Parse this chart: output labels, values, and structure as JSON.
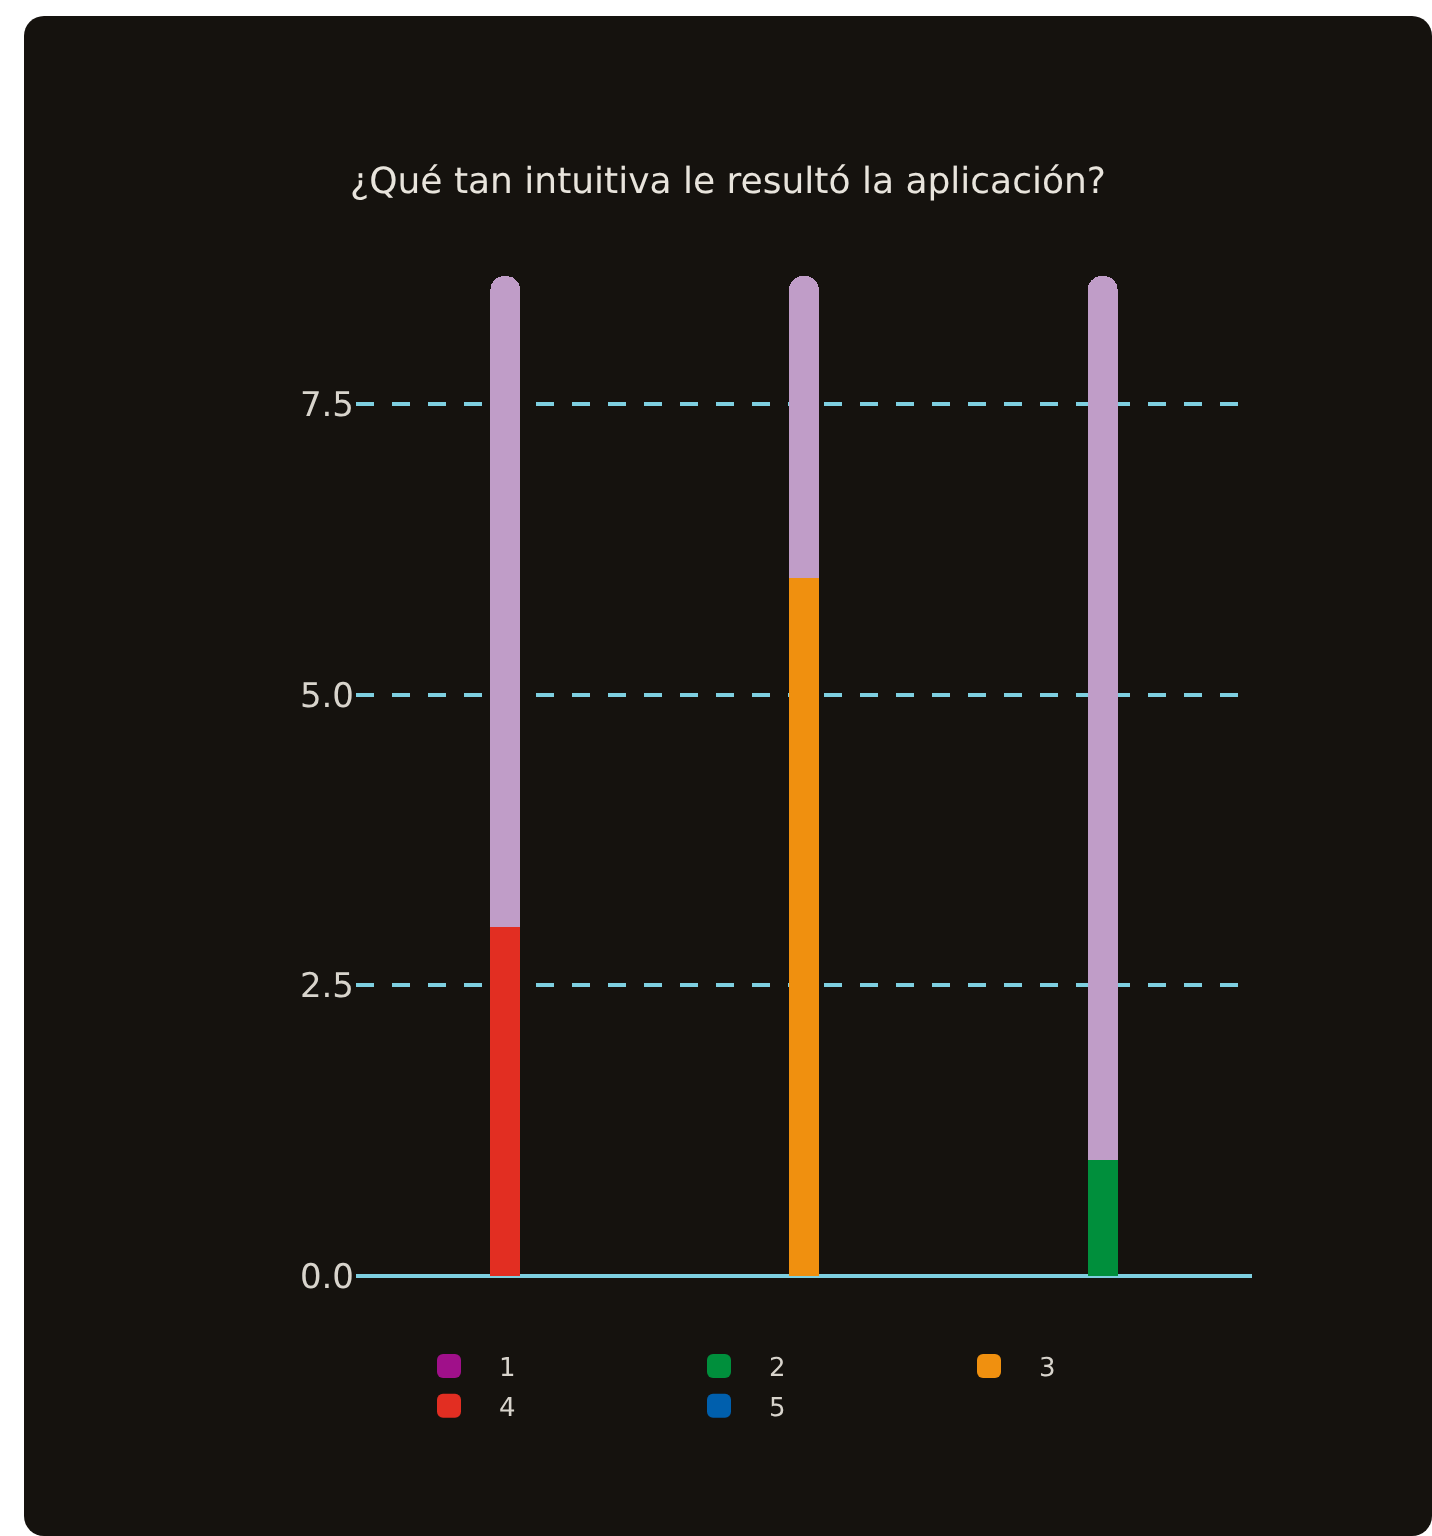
{
  "chart_data": {
    "type": "bar",
    "title": "¿Qué tan intuitiva le resultó la aplicación?",
    "categories": [
      null,
      null,
      null
    ],
    "stacked": true,
    "series": [
      {
        "name": "1",
        "color": "#a0108a",
        "values": [
          null,
          null,
          null
        ]
      },
      {
        "name": "2",
        "color": "#008f3c",
        "values": [
          null,
          null,
          1
        ]
      },
      {
        "name": "3",
        "color": "#f0900f",
        "values": [
          null,
          6,
          null
        ]
      },
      {
        "name": "4",
        "color": "#e22e22",
        "values": [
          3,
          null,
          null
        ]
      },
      {
        "name": "5",
        "color": "#005fad",
        "values": [
          null,
          null,
          null
        ]
      },
      {
        "color": "#c09dc8",
        "values": [
          5.6,
          2.6,
          7.6
        ]
      }
    ],
    "ylim": [
      0,
      8.6
    ],
    "yticks": [
      {
        "value": 0,
        "label": "0.0"
      },
      2.5,
      {
        "value": 5,
        "label": "5.0"
      },
      7.5
    ],
    "grid": "y",
    "legend": "bottom"
  }
}
